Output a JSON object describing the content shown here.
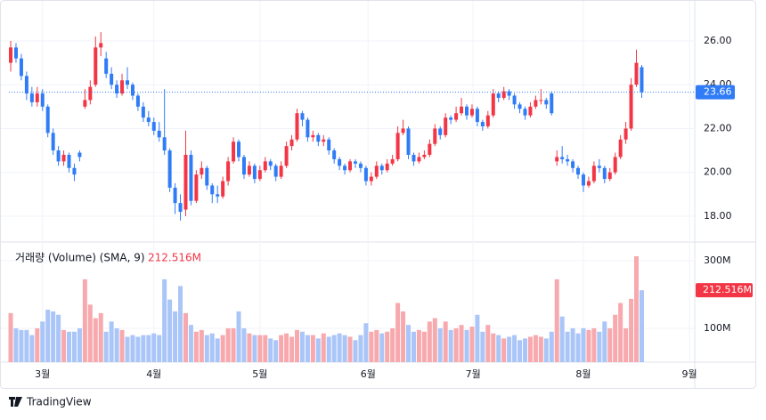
{
  "chart_data": {
    "type": "candlestick",
    "ohlc": [
      [
        25.0,
        26.0,
        24.6,
        25.7
      ],
      [
        25.7,
        25.9,
        25.0,
        25.2
      ],
      [
        25.2,
        25.4,
        24.2,
        24.4
      ],
      [
        24.4,
        24.6,
        23.3,
        23.6
      ],
      [
        23.6,
        23.9,
        23.0,
        23.2
      ],
      [
        23.2,
        23.9,
        23.0,
        23.6
      ],
      [
        23.6,
        23.8,
        22.8,
        23.0
      ],
      [
        23.0,
        23.1,
        21.6,
        21.8
      ],
      [
        21.8,
        22.0,
        20.8,
        21.0
      ],
      [
        21.0,
        21.2,
        20.3,
        20.5
      ],
      [
        20.5,
        21.0,
        20.3,
        20.8
      ],
      [
        20.8,
        20.9,
        20.0,
        20.2
      ],
      [
        20.2,
        20.4,
        19.6,
        19.9
      ],
      [
        20.9,
        21.0,
        20.5,
        20.7
      ],
      [
        23.0,
        23.8,
        22.9,
        23.3
      ],
      [
        23.3,
        24.2,
        23.1,
        23.9
      ],
      [
        24.0,
        26.2,
        23.9,
        25.7
      ],
      [
        25.7,
        26.4,
        25.3,
        25.9
      ],
      [
        25.2,
        25.5,
        24.3,
        24.5
      ],
      [
        24.5,
        24.8,
        23.8,
        24.0
      ],
      [
        24.0,
        24.2,
        23.4,
        23.6
      ],
      [
        23.6,
        24.5,
        23.5,
        24.2
      ],
      [
        24.2,
        24.8,
        23.8,
        24.0
      ],
      [
        24.0,
        24.1,
        23.3,
        23.5
      ],
      [
        23.5,
        23.6,
        22.8,
        23.0
      ],
      [
        23.0,
        23.2,
        22.3,
        22.5
      ],
      [
        22.5,
        22.8,
        22.1,
        22.3
      ],
      [
        22.3,
        22.5,
        21.7,
        21.9
      ],
      [
        21.9,
        22.3,
        21.4,
        21.6
      ],
      [
        21.6,
        23.8,
        20.8,
        21.0
      ],
      [
        21.0,
        21.1,
        19.1,
        19.3
      ],
      [
        19.3,
        19.5,
        18.1,
        18.6
      ],
      [
        18.6,
        19.0,
        17.8,
        18.2
      ],
      [
        18.3,
        21.9,
        18.0,
        20.8
      ],
      [
        20.8,
        21.0,
        18.5,
        18.7
      ],
      [
        18.7,
        20.1,
        18.6,
        19.9
      ],
      [
        19.9,
        20.5,
        19.7,
        20.2
      ],
      [
        20.2,
        20.3,
        19.2,
        19.4
      ],
      [
        19.4,
        19.5,
        18.6,
        19.0
      ],
      [
        19.0,
        19.4,
        18.6,
        18.9
      ],
      [
        18.9,
        19.8,
        18.8,
        19.6
      ],
      [
        19.6,
        20.7,
        19.4,
        20.5
      ],
      [
        20.5,
        21.6,
        20.4,
        21.4
      ],
      [
        21.4,
        21.5,
        20.5,
        20.7
      ],
      [
        20.7,
        20.8,
        19.7,
        19.9
      ],
      [
        19.9,
        20.5,
        19.8,
        20.3
      ],
      [
        20.3,
        20.4,
        19.5,
        19.7
      ],
      [
        19.7,
        20.3,
        19.6,
        20.1
      ],
      [
        20.1,
        20.7,
        20.0,
        20.5
      ],
      [
        20.5,
        20.6,
        20.1,
        20.3
      ],
      [
        20.3,
        20.4,
        19.6,
        19.8
      ],
      [
        19.8,
        20.5,
        19.7,
        20.3
      ],
      [
        20.3,
        21.4,
        20.2,
        21.2
      ],
      [
        21.2,
        21.7,
        21.0,
        21.5
      ],
      [
        21.5,
        22.9,
        21.4,
        22.7
      ],
      [
        22.7,
        22.8,
        22.1,
        22.4
      ],
      [
        22.4,
        22.5,
        21.4,
        21.6
      ],
      [
        21.6,
        21.9,
        21.4,
        21.7
      ],
      [
        21.7,
        21.8,
        21.2,
        21.4
      ],
      [
        21.4,
        21.7,
        21.2,
        21.5
      ],
      [
        21.5,
        21.6,
        20.8,
        21.0
      ],
      [
        21.0,
        21.1,
        20.4,
        20.6
      ],
      [
        20.6,
        20.7,
        20.1,
        20.3
      ],
      [
        20.3,
        20.4,
        19.9,
        20.1
      ],
      [
        20.1,
        20.6,
        20.0,
        20.5
      ],
      [
        20.5,
        20.6,
        20.2,
        20.4
      ],
      [
        20.4,
        20.5,
        20.0,
        20.2
      ],
      [
        20.2,
        20.3,
        19.4,
        19.6
      ],
      [
        19.6,
        20.0,
        19.4,
        19.8
      ],
      [
        19.8,
        20.5,
        19.7,
        20.3
      ],
      [
        20.3,
        20.4,
        19.9,
        20.1
      ],
      [
        20.1,
        20.6,
        20.0,
        20.4
      ],
      [
        20.4,
        20.8,
        20.3,
        20.6
      ],
      [
        20.6,
        22.1,
        20.5,
        21.8
      ],
      [
        21.8,
        22.4,
        21.7,
        22.0
      ],
      [
        22.0,
        22.1,
        20.6,
        20.8
      ],
      [
        20.8,
        20.9,
        20.3,
        20.5
      ],
      [
        20.5,
        20.9,
        20.4,
        20.7
      ],
      [
        20.7,
        21.0,
        20.6,
        20.8
      ],
      [
        20.8,
        21.5,
        20.7,
        21.3
      ],
      [
        21.3,
        22.2,
        21.2,
        22.0
      ],
      [
        22.0,
        22.1,
        21.5,
        21.7
      ],
      [
        21.7,
        22.7,
        21.6,
        22.5
      ],
      [
        22.5,
        22.6,
        22.2,
        22.4
      ],
      [
        22.4,
        23.0,
        22.3,
        22.7
      ],
      [
        22.7,
        23.4,
        22.6,
        23.0
      ],
      [
        23.0,
        23.1,
        22.4,
        22.6
      ],
      [
        22.6,
        23.1,
        22.5,
        22.9
      ],
      [
        22.9,
        23.0,
        22.1,
        22.3
      ],
      [
        22.3,
        22.4,
        21.9,
        22.1
      ],
      [
        22.1,
        22.8,
        22.0,
        22.6
      ],
      [
        22.6,
        23.8,
        22.5,
        23.6
      ],
      [
        23.6,
        23.7,
        23.2,
        23.4
      ],
      [
        23.4,
        23.9,
        23.3,
        23.7
      ],
      [
        23.7,
        23.8,
        23.3,
        23.5
      ],
      [
        23.5,
        23.6,
        22.9,
        23.1
      ],
      [
        23.1,
        23.2,
        22.7,
        22.9
      ],
      [
        22.9,
        23.0,
        22.4,
        22.6
      ],
      [
        22.6,
        23.2,
        22.5,
        23.0
      ],
      [
        23.0,
        23.5,
        22.9,
        23.3
      ],
      [
        23.3,
        23.8,
        23.1,
        23.3
      ],
      [
        23.3,
        23.4,
        22.9,
        23.1
      ],
      [
        23.6,
        23.7,
        22.6,
        22.7
      ],
      [
        20.5,
        21.0,
        20.3,
        20.7
      ],
      [
        20.7,
        21.2,
        20.4,
        20.6
      ],
      [
        20.6,
        20.8,
        20.3,
        20.5
      ],
      [
        20.5,
        20.6,
        20.0,
        20.2
      ],
      [
        20.2,
        20.3,
        19.7,
        19.9
      ],
      [
        19.9,
        20.0,
        19.1,
        19.4
      ],
      [
        19.4,
        19.8,
        19.3,
        19.6
      ],
      [
        19.6,
        20.5,
        19.5,
        20.3
      ],
      [
        20.3,
        20.6,
        20.0,
        20.2
      ],
      [
        20.2,
        20.3,
        19.5,
        19.7
      ],
      [
        19.7,
        20.2,
        19.6,
        20.0
      ],
      [
        20.0,
        20.9,
        19.9,
        20.7
      ],
      [
        20.7,
        21.7,
        20.6,
        21.5
      ],
      [
        21.5,
        22.3,
        21.3,
        22.0
      ],
      [
        22.0,
        24.3,
        21.9,
        24.0
      ],
      [
        24.0,
        25.6,
        23.9,
        25.0
      ],
      [
        24.8,
        24.9,
        23.4,
        23.66
      ]
    ],
    "volume": [
      145,
      100,
      95,
      95,
      80,
      100,
      120,
      155,
      150,
      140,
      95,
      90,
      90,
      100,
      245,
      170,
      130,
      145,
      90,
      120,
      100,
      95,
      75,
      80,
      75,
      80,
      80,
      85,
      80,
      245,
      185,
      150,
      225,
      145,
      110,
      90,
      95,
      80,
      85,
      70,
      80,
      100,
      100,
      150,
      100,
      85,
      80,
      80,
      80,
      70,
      65,
      80,
      85,
      75,
      95,
      90,
      80,
      80,
      70,
      85,
      75,
      80,
      85,
      80,
      75,
      65,
      80,
      115,
      90,
      95,
      85,
      90,
      100,
      175,
      150,
      110,
      90,
      95,
      90,
      120,
      130,
      100,
      120,
      95,
      100,
      110,
      95,
      105,
      140,
      90,
      110,
      85,
      80,
      70,
      75,
      80,
      65,
      70,
      75,
      80,
      75,
      70,
      90,
      245,
      135,
      90,
      100,
      85,
      100,
      95,
      100,
      90,
      120,
      100,
      140,
      175,
      100,
      187,
      313,
      212.516
    ],
    "up_color": "#f23645",
    "down_color": "#2f7cf6",
    "up_volume_color": "#f7a9ae",
    "down_volume_color": "#aac5f7",
    "xlim": [
      -0.34,
      129
    ],
    "xticks": [
      {
        "value": 6,
        "label": "3월"
      },
      {
        "value": 27,
        "label": "4월"
      },
      {
        "value": 47,
        "label": "5월"
      },
      {
        "value": 67.4,
        "label": "6월"
      },
      {
        "value": 87.2,
        "label": "7월"
      },
      {
        "value": 108,
        "label": "8월"
      },
      {
        "value": 128,
        "label": "9월"
      }
    ],
    "ylim": [
      16.82,
      27.46
    ],
    "yticks": [
      {
        "value": 18,
        "label": "18.00"
      },
      {
        "value": 20,
        "label": "20.00"
      },
      {
        "value": 22,
        "label": "22.00"
      },
      {
        "value": 24,
        "label": "24.00"
      },
      {
        "value": 26,
        "label": "26.00"
      }
    ],
    "y2lim": [
      0,
      355
    ],
    "y2ticks": [
      {
        "value": 100,
        "label": "100M"
      },
      {
        "value": 300,
        "label": "300M"
      }
    ],
    "last_price_label": "23.66",
    "volume_legend": "거래량 (Volume) (SMA, 9)",
    "volume_label": "212.516M",
    "grid": true,
    "brand": "TradingView"
  }
}
